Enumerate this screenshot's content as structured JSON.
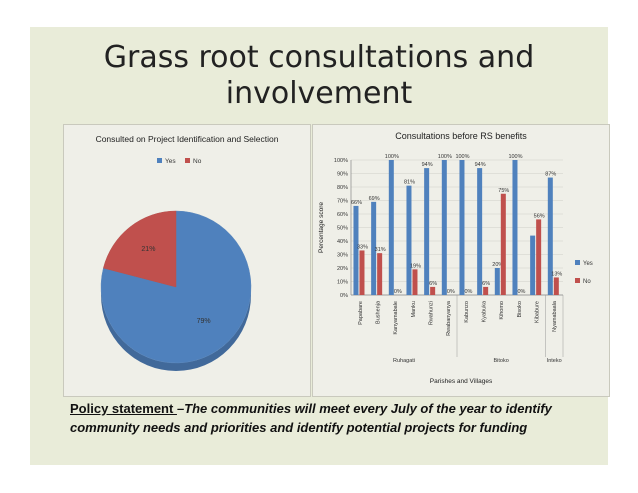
{
  "slide": {
    "title": "Grass root consultations and involvement",
    "policy_lead": "Policy statement ",
    "policy_text": "–The communities will meet every July of the year to identify community needs and priorities and identify potential projects for funding"
  },
  "colors": {
    "yes": "#4f81bd",
    "no": "#c0504d",
    "background": "#e9ecd9"
  },
  "chart_data": [
    {
      "type": "pie",
      "title": "Consulted on Project Identification and Selection",
      "legend": "top",
      "labels": [
        "Yes",
        "No"
      ],
      "values": [
        79,
        21
      ],
      "data_labels": [
        "79%",
        "21%"
      ]
    },
    {
      "type": "bar",
      "title": "Consultations before RS benefits",
      "xlabel": "Parishes and Villages",
      "ylabel": "Percentage score",
      "ylim": [
        0,
        100
      ],
      "y_ticks": [
        "0%",
        "10%",
        "20%",
        "30%",
        "40%",
        "50%",
        "60%",
        "70%",
        "80%",
        "90%",
        "100%"
      ],
      "grid": true,
      "legend": "right",
      "categories": [
        "Papabare",
        "Bushenja",
        "Kanyamabale",
        "Manku",
        "Rwahunzi",
        "Rwabanyanya",
        "Kabunzo",
        "Kyabuka",
        "Kihomo",
        "Bisoko",
        "Kibabure",
        "Nyamabaala"
      ],
      "groups": [
        "Ruhagati",
        "Bitoko",
        "Inteko"
      ],
      "series": [
        {
          "name": "Yes",
          "values": [
            66,
            69,
            100,
            81,
            94,
            100,
            100,
            94,
            20,
            100,
            44,
            87
          ],
          "labels": [
            "66%",
            "69%",
            "100%",
            "81%",
            "94%",
            "100%",
            "100%",
            "94%",
            "20%",
            "100%",
            "",
            "87%"
          ]
        },
        {
          "name": "No",
          "values": [
            33,
            31,
            0,
            19,
            6,
            0,
            0,
            6,
            75,
            0,
            56,
            13
          ],
          "labels": [
            "33%",
            "31%",
            "0%",
            "19%",
            "6%",
            "0%",
            "0%",
            "6%",
            "75%",
            "0%",
            "56%",
            "13%"
          ]
        }
      ]
    }
  ]
}
